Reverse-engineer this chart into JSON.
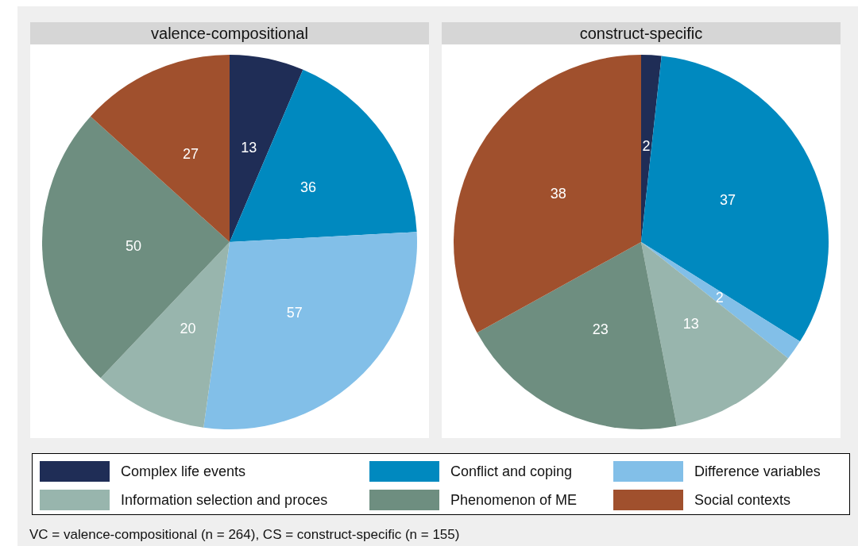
{
  "chart_data": {
    "type": "pie",
    "categories": [
      "Complex life events",
      "Conflict and coping",
      "Difference variables",
      "Information selection and proces",
      "Phenomenon of ME",
      "Social contexts"
    ],
    "colors": [
      "#1f2d56",
      "#0089bf",
      "#82bfe8",
      "#98b5ad",
      "#6e8e80",
      "#a0502d"
    ],
    "series": [
      {
        "name": "valence-compositional",
        "values": [
          13,
          36,
          57,
          20,
          50,
          27
        ]
      },
      {
        "name": "construct-specific",
        "values": [
          2,
          37,
          2,
          13,
          23,
          38
        ]
      }
    ],
    "data_labels": true,
    "legend": "bottom",
    "annotations": [
      "VC = valence-compositional (n = 264), CS = construct-specific (n = 155)"
    ]
  }
}
